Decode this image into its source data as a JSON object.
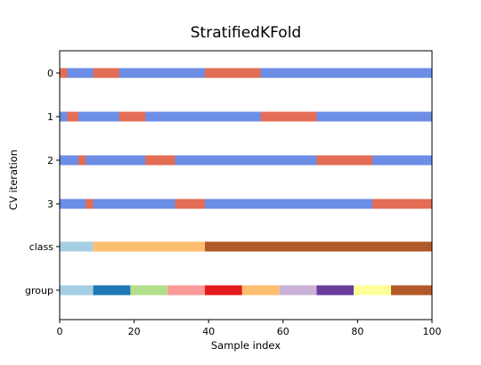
{
  "chart_data": {
    "type": "bar",
    "title": "StratifiedKFold",
    "xlabel": "Sample index",
    "ylabel": "CV iteration",
    "xlim": [
      0,
      100
    ],
    "x_ticks": [
      0,
      20,
      40,
      60,
      80,
      100
    ],
    "y_categories": [
      "0",
      "1",
      "2",
      "3",
      "class",
      "group"
    ],
    "colors": {
      "train": "#6d8ee6",
      "test": "#e36d55"
    },
    "cv_iterations": [
      {
        "label": "0",
        "test_ranges": [
          [
            0,
            2
          ],
          [
            9,
            16
          ],
          [
            39,
            54
          ]
        ]
      },
      {
        "label": "1",
        "test_ranges": [
          [
            2,
            5
          ],
          [
            16,
            23
          ],
          [
            54,
            69
          ]
        ]
      },
      {
        "label": "2",
        "test_ranges": [
          [
            5,
            7
          ],
          [
            23,
            31
          ],
          [
            69,
            84
          ]
        ]
      },
      {
        "label": "3",
        "test_ranges": [
          [
            7,
            9
          ],
          [
            31,
            39
          ],
          [
            84,
            100
          ]
        ]
      }
    ],
    "class_row": {
      "label": "class",
      "segments": [
        {
          "start": 0,
          "end": 9,
          "color": "#a6cee3"
        },
        {
          "start": 9,
          "end": 39,
          "color": "#fdbf6f"
        },
        {
          "start": 39,
          "end": 100,
          "color": "#b15928"
        }
      ]
    },
    "group_row": {
      "label": "group",
      "segments": [
        {
          "start": 0,
          "end": 9,
          "color": "#a6cee3"
        },
        {
          "start": 9,
          "end": 19,
          "color": "#1f78b4"
        },
        {
          "start": 19,
          "end": 29,
          "color": "#b2df8a"
        },
        {
          "start": 29,
          "end": 39,
          "color": "#fb9a99"
        },
        {
          "start": 39,
          "end": 49,
          "color": "#e31a1c"
        },
        {
          "start": 49,
          "end": 59,
          "color": "#fdbf6f"
        },
        {
          "start": 59,
          "end": 69,
          "color": "#cab2d6"
        },
        {
          "start": 69,
          "end": 79,
          "color": "#6a3d9a"
        },
        {
          "start": 79,
          "end": 89,
          "color": "#ffff99"
        },
        {
          "start": 89,
          "end": 100,
          "color": "#b15928"
        }
      ]
    }
  }
}
